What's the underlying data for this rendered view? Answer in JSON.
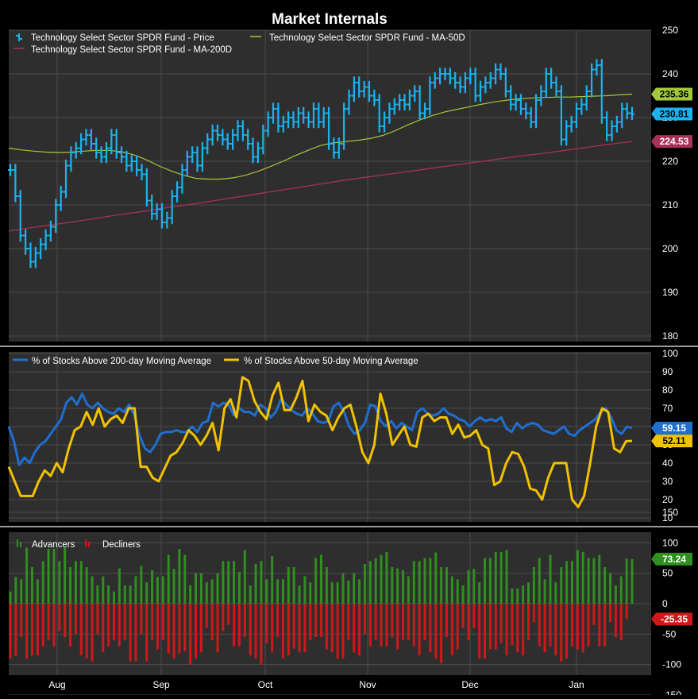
{
  "title": "Market Internals",
  "colors": {
    "panel_bg": "#2e2e2e",
    "grid": "#4c4c4c",
    "price": "#1ab3f0",
    "ma50": "#a3c93a",
    "ma200": "#a8305a",
    "pct200": "#1f6fd1",
    "pct50": "#f2c200",
    "advancers": "#2f8f1f",
    "decliners": "#d01818",
    "text": "#ffffff"
  },
  "chart_data": [
    {
      "type": "line",
      "panel": "price",
      "ylim": [
        180,
        250
      ],
      "yticks": [
        180,
        190,
        200,
        210,
        220,
        230,
        240,
        250
      ],
      "x_month_labels": [
        "Aug",
        "Sep",
        "Oct",
        "Nov",
        "Dec",
        "Jan"
      ],
      "legend": [
        {
          "name": "Technology Select Sector SPDR Fund - Price",
          "marker": "bar"
        },
        {
          "name": "Technology Select Sector SPDR Fund - MA-50D",
          "marker": "line"
        },
        {
          "name": "Technology Select Sector SPDR Fund - MA-200D",
          "marker": "line"
        }
      ],
      "series": [
        {
          "name": "Technology Select Sector SPDR Fund - Price",
          "values": [
            218,
            212,
            203,
            200,
            197,
            199,
            201,
            203,
            205,
            210,
            213,
            219,
            222,
            223,
            225,
            226,
            224,
            222,
            221,
            223,
            226,
            222,
            221,
            219,
            220,
            218,
            217,
            211,
            208,
            209,
            206,
            207,
            212,
            214,
            218,
            221,
            222,
            219,
            223,
            225,
            227,
            226,
            225,
            224,
            226,
            228,
            226,
            224,
            221,
            223,
            227,
            230,
            232,
            228,
            229,
            230,
            229,
            231,
            230,
            229,
            232,
            229,
            231,
            224,
            222,
            224,
            232,
            235,
            238,
            236,
            237,
            235,
            234,
            228,
            230,
            232,
            233,
            234,
            233,
            235,
            236,
            231,
            232,
            238,
            239,
            240,
            240,
            239,
            238,
            237,
            239,
            240,
            235,
            237,
            238,
            239,
            241,
            240,
            236,
            233,
            234,
            232,
            231,
            229,
            234,
            236,
            240,
            238,
            236,
            225,
            228,
            229,
            232,
            233,
            236,
            241,
            242,
            230,
            226,
            228,
            229,
            232,
            231,
            230.81
          ]
        },
        {
          "name": "Technology Select Sector SPDR Fund - MA-50D",
          "values": [
            223,
            222.6,
            222.3,
            222.1,
            222,
            222.1,
            222.3,
            222.5,
            222.5,
            222.2,
            221.5,
            220.4,
            219,
            217.8,
            216.8,
            216.1,
            215.9,
            215.9,
            216.2,
            216.8,
            217.7,
            218.8,
            220,
            221.3,
            222.5,
            223.6,
            224.2,
            224.5,
            224.8,
            225.2,
            225.9,
            227,
            228.3,
            229.5,
            230.5,
            231.3,
            231.9,
            232.5,
            233.1,
            233.6,
            234,
            234.3,
            234.5,
            234.6,
            234.7,
            234.7,
            234.8,
            234.9,
            235,
            235.2,
            235.36
          ]
        },
        {
          "name": "Technology Select Sector SPDR Fund - MA-200D",
          "values": [
            204,
            204.8,
            205.5,
            206.2,
            207,
            207.8,
            208.5,
            209.3,
            210,
            210.8,
            211.6,
            212.4,
            213.2,
            214,
            214.8,
            215.6,
            216.3,
            217,
            217.7,
            218.4,
            219.1,
            219.8,
            220.5,
            221.2,
            221.8,
            222.5,
            223.2,
            223.9,
            224.53
          ]
        }
      ],
      "last_labels": [
        {
          "series": "Technology Select Sector SPDR Fund - MA-50D",
          "value": "235.36"
        },
        {
          "series": "Technology Select Sector SPDR Fund - Price",
          "value": "230.81"
        },
        {
          "series": "Technology Select Sector SPDR Fund - MA-200D",
          "value": "224.53"
        }
      ]
    },
    {
      "type": "line",
      "panel": "breadth",
      "ylim": [
        10,
        100
      ],
      "yticks": [
        10,
        20,
        30,
        40,
        50,
        60,
        70,
        80,
        90,
        100
      ],
      "series": [
        {
          "name": "% of Stocks Above 200-day Moving Average",
          "values": [
            60,
            52,
            39,
            43,
            40,
            46,
            50,
            52,
            56,
            60,
            64,
            73,
            76,
            72,
            78,
            72,
            70,
            73,
            70,
            68,
            67,
            70,
            68,
            72,
            66,
            55,
            48,
            46,
            50,
            56,
            57,
            57,
            58,
            57,
            57,
            60,
            57,
            62,
            63,
            73,
            71,
            73,
            72,
            66,
            70,
            68,
            68,
            66,
            72,
            70,
            65,
            68,
            75,
            72,
            69,
            67,
            66,
            70,
            67,
            63,
            62,
            63,
            71,
            73,
            68,
            60,
            56,
            58,
            62,
            72,
            71,
            63,
            60,
            63,
            59,
            62,
            60,
            58,
            68,
            70,
            67,
            66,
            67,
            70,
            67,
            66,
            64,
            63,
            60,
            63,
            65,
            63,
            64,
            63,
            65,
            59,
            57,
            62,
            59,
            61,
            62,
            61,
            58,
            57,
            56,
            58,
            60,
            56,
            55,
            58,
            60,
            62,
            64,
            68,
            70,
            65,
            58,
            56,
            60,
            59.15
          ]
        },
        {
          "name": "% of Stocks Above 50-day Moving Average",
          "values": [
            38,
            30,
            22,
            22,
            22,
            30,
            36,
            33,
            40,
            35,
            48,
            58,
            60,
            68,
            61,
            70,
            60,
            64,
            66,
            62,
            70,
            70,
            38,
            38,
            32,
            30,
            37,
            44,
            46,
            51,
            58,
            55,
            50,
            55,
            62,
            47,
            70,
            75,
            65,
            87,
            85,
            74,
            68,
            64,
            77,
            84,
            69,
            69,
            76,
            85,
            63,
            72,
            68,
            66,
            58,
            65,
            70,
            72,
            60,
            46,
            40,
            50,
            78,
            67,
            50,
            55,
            60,
            50,
            49,
            65,
            67,
            63,
            65,
            65,
            56,
            61,
            54,
            55,
            58,
            50,
            48,
            28,
            30,
            40,
            46,
            45,
            38,
            26,
            25,
            20,
            32,
            40,
            40,
            40,
            20,
            16,
            22,
            40,
            60,
            70,
            68,
            48,
            46,
            52,
            52.11
          ]
        }
      ],
      "last_labels": [
        {
          "series": "% of Stocks Above 200-day Moving Average",
          "value": "59.15"
        },
        {
          "series": "% of Stocks Above 50-day Moving Average",
          "value": "52.11"
        }
      ]
    },
    {
      "type": "bar",
      "panel": "advance_decline",
      "ylim": [
        -150,
        150
      ],
      "yticks": [
        150,
        100,
        50,
        0,
        -50,
        -100,
        -150
      ],
      "ytick_labels": [
        "150",
        "100",
        "50",
        "0",
        "-50",
        "-100",
        "-150"
      ],
      "series": [
        {
          "name": "Advancers",
          "values": [
            20,
            44,
            40,
            92,
            60,
            40,
            70,
            90,
            90,
            70,
            92,
            60,
            70,
            70,
            60,
            45,
            30,
            45,
            30,
            20,
            58,
            30,
            30,
            45,
            62,
            35,
            55,
            44,
            45,
            80,
            57,
            90,
            80,
            30,
            50,
            50,
            35,
            40,
            50,
            70,
            70,
            70,
            52,
            88,
            30,
            65,
            70,
            40,
            78,
            40,
            40,
            60,
            60,
            30,
            45,
            35,
            75,
            80,
            60,
            35,
            35,
            50,
            38,
            50,
            40,
            65,
            70,
            75,
            80,
            85,
            60,
            58,
            55,
            45,
            70,
            70,
            75,
            75,
            84,
            60,
            60,
            45,
            40,
            30,
            55,
            57,
            35,
            75,
            75,
            85,
            85,
            88,
            25,
            25,
            30,
            35,
            60,
            75,
            40,
            80,
            35,
            60,
            70,
            70,
            88,
            85,
            75,
            75,
            80,
            60,
            50,
            30,
            45,
            74,
            73.24
          ]
        },
        {
          "name": "Decliners",
          "values": [
            90,
            86,
            55,
            90,
            85,
            85,
            70,
            60,
            70,
            45,
            55,
            70,
            50,
            85,
            90,
            95,
            50,
            80,
            70,
            60,
            70,
            60,
            95,
            95,
            50,
            95,
            60,
            75,
            60,
            82,
            90,
            82,
            78,
            100,
            90,
            80,
            40,
            60,
            80,
            45,
            35,
            70,
            70,
            55,
            85,
            90,
            100,
            65,
            80,
            55,
            90,
            85,
            74,
            80,
            80,
            60,
            55,
            55,
            75,
            80,
            90,
            90,
            60,
            80,
            85,
            50,
            70,
            60,
            70,
            70,
            55,
            75,
            60,
            60,
            70,
            85,
            60,
            80,
            90,
            98,
            55,
            85,
            75,
            40,
            60,
            40,
            90,
            90,
            75,
            75,
            65,
            85,
            68,
            80,
            85,
            60,
            30,
            70,
            80,
            70,
            85,
            95,
            90,
            70,
            75,
            80,
            70,
            35,
            70,
            70,
            30,
            55,
            60,
            25.35
          ]
        }
      ],
      "last_labels": [
        {
          "series": "Advancers",
          "value": "73.24"
        },
        {
          "series": "Decliners",
          "value": "-25.35"
        }
      ]
    }
  ]
}
